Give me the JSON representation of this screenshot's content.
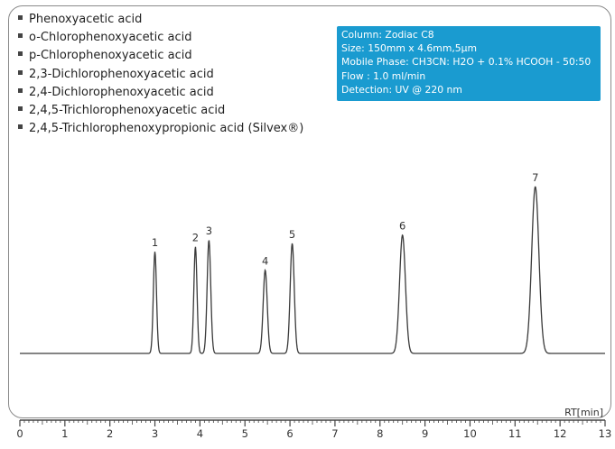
{
  "chart_data": {
    "type": "line",
    "title": "",
    "xlabel": "RT[min]",
    "ylabel": "",
    "xlim": [
      0,
      13
    ],
    "x_ticks": [
      "0",
      "1",
      "2",
      "3",
      "4",
      "5",
      "6",
      "7",
      "8",
      "9",
      "10",
      "11",
      "12",
      "13"
    ],
    "grid": false,
    "legend": [
      "Phenoxyacetic acid",
      "o-Chlorophenoxyacetic acid",
      "p-Chlorophenoxyacetic acid",
      "2,3-Dichlorophenoxyacetic acid",
      "2,4-Dichlorophenoxyacetic acid",
      "2,4,5-Trichlorophenoxyacetic acid",
      "2,4,5-Trichlorophenoxypropionic acid (Silvex®)"
    ],
    "conditions": [
      "Column: Zodiac C8",
      "Size: 150mm x 4.6mm,5μm",
      "Mobile Phase: CH3CN: H2O + 0.1% HCOOH - 50:50",
      "Flow : 1.0 ml/min",
      "Detection: UV @ 220 nm"
    ],
    "peaks": [
      {
        "label": "1",
        "rt": 3.0,
        "height": 0.61,
        "width": 0.035
      },
      {
        "label": "2",
        "rt": 3.9,
        "height": 0.64,
        "width": 0.035
      },
      {
        "label": "3",
        "rt": 4.2,
        "height": 0.68,
        "width": 0.04
      },
      {
        "label": "4",
        "rt": 5.45,
        "height": 0.5,
        "width": 0.045
      },
      {
        "label": "5",
        "rt": 6.05,
        "height": 0.66,
        "width": 0.045
      },
      {
        "label": "6",
        "rt": 8.5,
        "height": 0.71,
        "width": 0.065
      },
      {
        "label": "7",
        "rt": 11.45,
        "height": 1.0,
        "width": 0.08
      }
    ],
    "colors": {
      "trace": "#3a3a3a",
      "info_box": "#1a9bd0"
    }
  }
}
